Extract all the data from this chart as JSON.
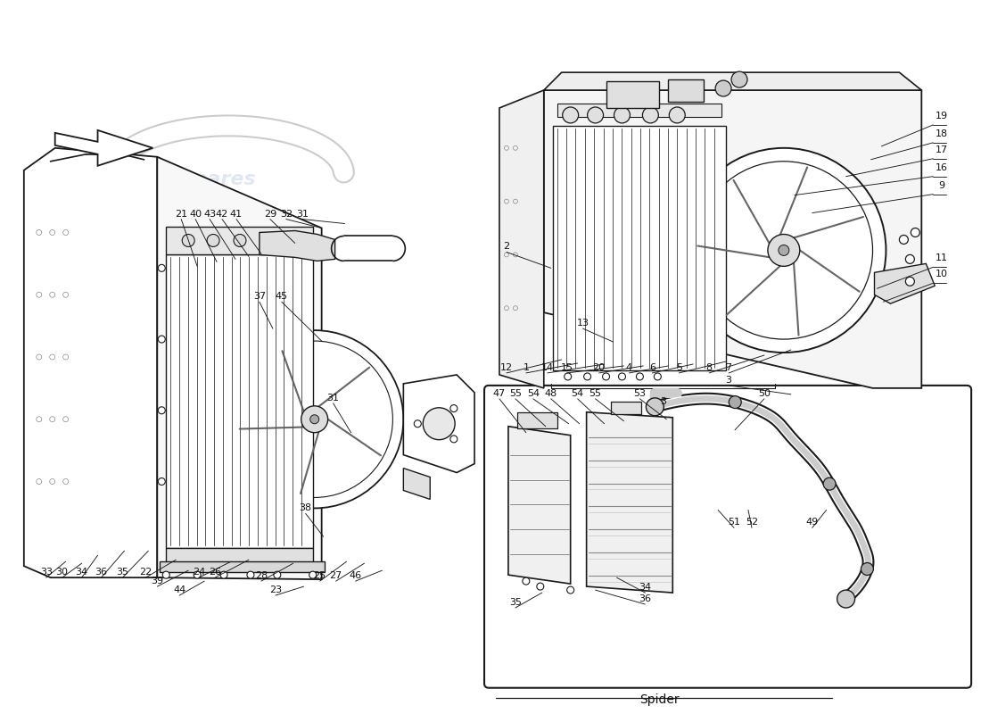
{
  "bg_color": "#ffffff",
  "line_color": "#1a1a1a",
  "label_color": "#111111",
  "watermark_color": "#c8d4e8",
  "font_size_label": 8,
  "font_size_watermark": 16,
  "left_labels": [
    [
      202,
      245,
      220,
      298,
      "21"
    ],
    [
      218,
      245,
      242,
      293,
      "40"
    ],
    [
      234,
      245,
      263,
      290,
      "43"
    ],
    [
      248,
      245,
      278,
      287,
      "42"
    ],
    [
      264,
      245,
      292,
      284,
      "41"
    ],
    [
      302,
      245,
      330,
      272,
      "29"
    ],
    [
      320,
      245,
      360,
      255,
      "32"
    ],
    [
      338,
      245,
      386,
      250,
      "31"
    ],
    [
      290,
      338,
      305,
      368,
      "37"
    ],
    [
      315,
      338,
      360,
      382,
      "45"
    ],
    [
      373,
      452,
      393,
      485,
      "31"
    ],
    [
      342,
      576,
      362,
      602,
      "38"
    ],
    [
      50,
      648,
      72,
      630,
      "33"
    ],
    [
      68,
      648,
      90,
      632,
      "30"
    ],
    [
      90,
      648,
      108,
      623,
      "34"
    ],
    [
      112,
      648,
      138,
      618,
      "36"
    ],
    [
      136,
      648,
      165,
      618,
      "35"
    ],
    [
      162,
      648,
      196,
      628,
      "22"
    ],
    [
      175,
      658,
      210,
      640,
      "39"
    ],
    [
      200,
      668,
      228,
      652,
      "44"
    ],
    [
      222,
      648,
      258,
      630,
      "24"
    ],
    [
      240,
      648,
      278,
      628,
      "26"
    ],
    [
      292,
      652,
      328,
      632,
      "28"
    ],
    [
      308,
      668,
      340,
      658,
      "23"
    ],
    [
      358,
      652,
      388,
      630,
      "25"
    ],
    [
      376,
      652,
      408,
      632,
      "27"
    ],
    [
      398,
      652,
      428,
      640,
      "46"
    ]
  ],
  "right_labels": [
    [
      1058,
      135,
      990,
      163,
      "19"
    ],
    [
      1058,
      155,
      978,
      178,
      "18"
    ],
    [
      1058,
      173,
      950,
      197,
      "17"
    ],
    [
      1058,
      193,
      892,
      218,
      "16"
    ],
    [
      1058,
      213,
      912,
      238,
      "9"
    ],
    [
      568,
      282,
      618,
      300,
      "2"
    ],
    [
      1058,
      295,
      985,
      323,
      "11"
    ],
    [
      1058,
      313,
      992,
      338,
      "10"
    ],
    [
      654,
      368,
      688,
      383,
      "13"
    ],
    [
      568,
      418,
      630,
      403,
      "12"
    ],
    [
      590,
      418,
      648,
      407,
      "1"
    ],
    [
      614,
      418,
      678,
      408,
      "14"
    ],
    [
      636,
      418,
      700,
      410,
      "15"
    ],
    [
      672,
      418,
      722,
      410,
      "20"
    ],
    [
      706,
      418,
      750,
      410,
      "4"
    ],
    [
      732,
      418,
      778,
      408,
      "6"
    ],
    [
      762,
      418,
      815,
      405,
      "5"
    ],
    [
      796,
      418,
      858,
      398,
      "8"
    ],
    [
      818,
      418,
      888,
      392,
      "7"
    ],
    [
      818,
      432,
      888,
      442,
      "3"
    ]
  ],
  "spider_labels": [
    [
      560,
      447,
      590,
      485,
      "47"
    ],
    [
      578,
      447,
      612,
      478,
      "55"
    ],
    [
      598,
      447,
      638,
      475,
      "54"
    ],
    [
      618,
      447,
      650,
      475,
      "48"
    ],
    [
      648,
      447,
      678,
      475,
      "54"
    ],
    [
      668,
      447,
      700,
      472,
      "55"
    ],
    [
      718,
      447,
      748,
      470,
      "53"
    ],
    [
      858,
      447,
      825,
      482,
      "50"
    ],
    [
      824,
      592,
      806,
      572,
      "51"
    ],
    [
      844,
      592,
      840,
      572,
      "52"
    ],
    [
      912,
      592,
      928,
      572,
      "49"
    ],
    [
      724,
      665,
      692,
      648,
      "34"
    ],
    [
      724,
      678,
      668,
      662,
      "36"
    ],
    [
      578,
      682,
      608,
      665,
      "35"
    ]
  ]
}
